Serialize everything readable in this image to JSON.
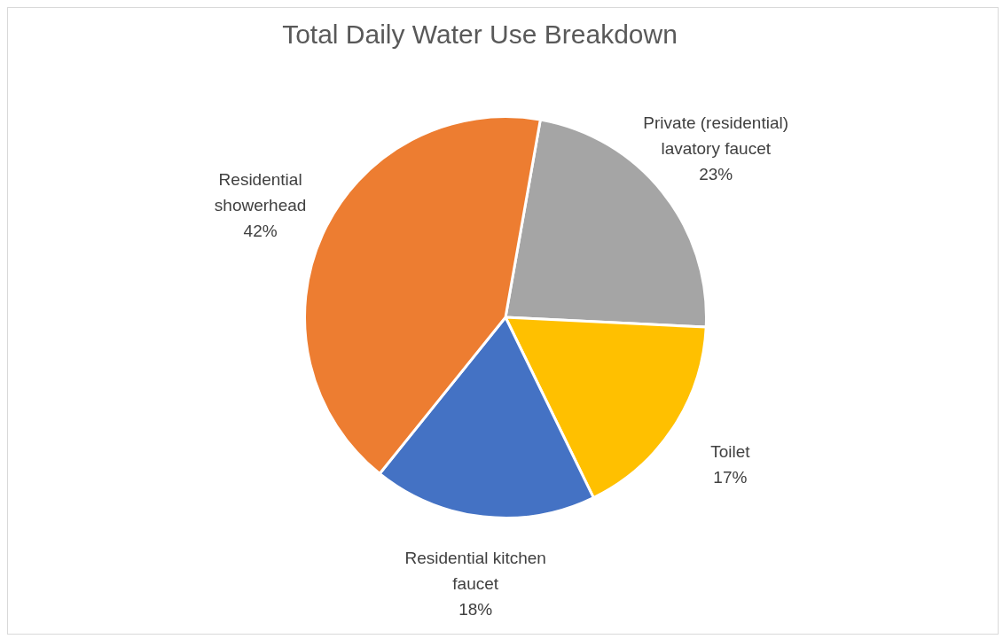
{
  "chart_data": {
    "type": "pie",
    "title": "Total Daily Water Use Breakdown",
    "categories": [
      "Private (residential) lavatory faucet",
      "Toilet",
      "Residential kitchen faucet",
      "Residential showerhead"
    ],
    "values": [
      23,
      17,
      18,
      42
    ],
    "value_labels": [
      "23%",
      "17%",
      "18%",
      "42%"
    ],
    "colors": [
      "#a5a5a5",
      "#ffc000",
      "#4472c4",
      "#ed7d31"
    ],
    "legend": false
  }
}
